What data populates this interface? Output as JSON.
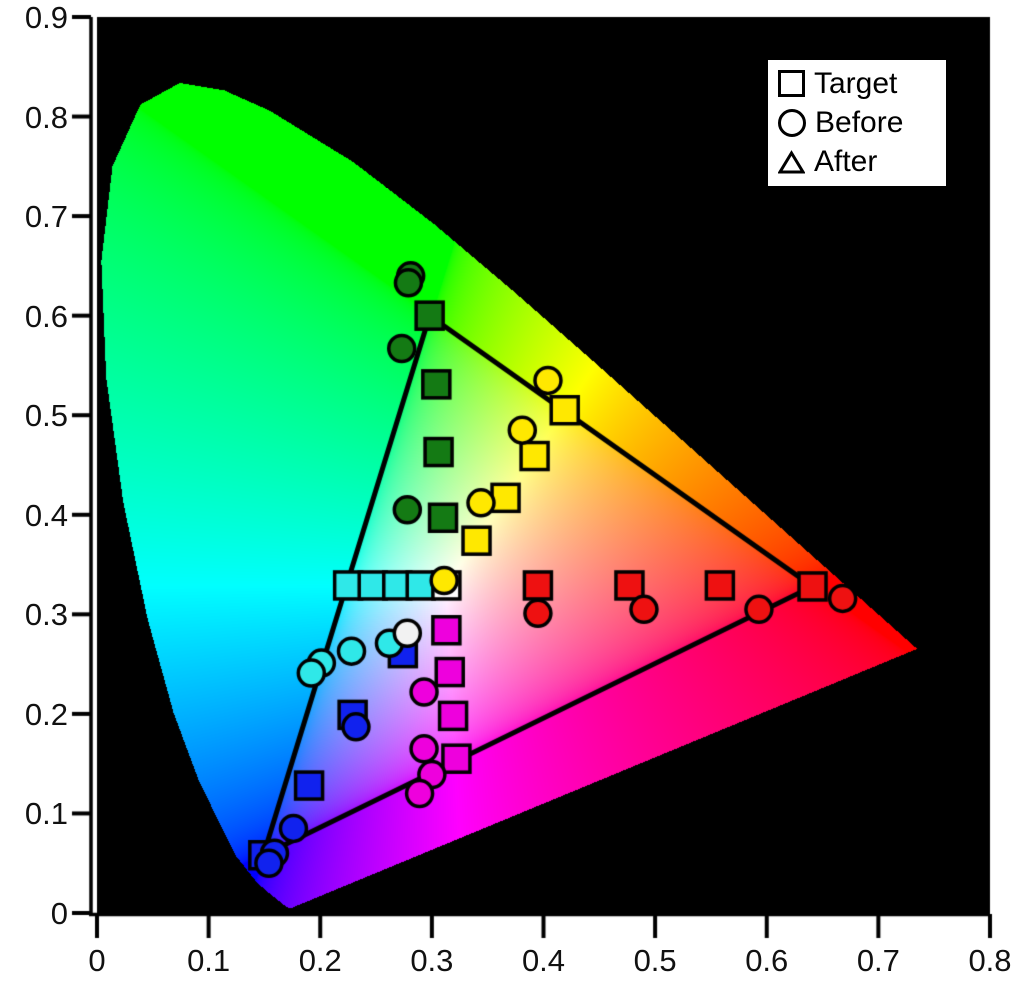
{
  "legend": {
    "items": [
      {
        "marker": "square",
        "label": "Target"
      },
      {
        "marker": "circle",
        "label": "Before"
      },
      {
        "marker": "triangle",
        "label": "After"
      }
    ]
  },
  "chart_data": {
    "type": "scatter",
    "description": "CIE 1931 xy chromaticity diagram on black background with display gamut triangle, target color patches (squares) and measured points before calibration (circles)",
    "xlim": [
      0,
      0.8
    ],
    "ylim": [
      0,
      0.9
    ],
    "x_ticks": [
      "0",
      "0.1",
      "0.2",
      "0.3",
      "0.4",
      "0.5",
      "0.6",
      "0.7",
      "0.8"
    ],
    "y_ticks": [
      "0",
      "0.1",
      "0.2",
      "0.3",
      "0.4",
      "0.5",
      "0.6",
      "0.7",
      "0.8",
      "0.9"
    ],
    "grid": false,
    "legend_position": "top-right",
    "background_color": "#000000",
    "gamut_triangle": {
      "color": "#000000",
      "line_width": 5,
      "vertices": [
        {
          "x": 0.298,
          "y": 0.6
        },
        {
          "x": 0.641,
          "y": 0.328
        },
        {
          "x": 0.149,
          "y": 0.058
        }
      ]
    },
    "series": [
      {
        "name": "Target",
        "marker": "square",
        "points": [
          {
            "x": 0.298,
            "y": 0.6,
            "color": "#147a14"
          },
          {
            "x": 0.304,
            "y": 0.531,
            "color": "#147a14"
          },
          {
            "x": 0.306,
            "y": 0.463,
            "color": "#147a14"
          },
          {
            "x": 0.31,
            "y": 0.397,
            "color": "#147a14"
          },
          {
            "x": 0.419,
            "y": 0.505,
            "color": "#ffe800"
          },
          {
            "x": 0.392,
            "y": 0.459,
            "color": "#ffe800"
          },
          {
            "x": 0.366,
            "y": 0.417,
            "color": "#ffe800"
          },
          {
            "x": 0.34,
            "y": 0.374,
            "color": "#ffe800"
          },
          {
            "x": 0.225,
            "y": 0.329,
            "color": "#2fe8e8"
          },
          {
            "x": 0.247,
            "y": 0.329,
            "color": "#2fe8e8"
          },
          {
            "x": 0.269,
            "y": 0.329,
            "color": "#2fe8e8"
          },
          {
            "x": 0.29,
            "y": 0.329,
            "color": "#2fe8e8"
          },
          {
            "x": 0.313,
            "y": 0.329,
            "color": "#ffffff"
          },
          {
            "x": 0.395,
            "y": 0.329,
            "color": "#ee1111"
          },
          {
            "x": 0.477,
            "y": 0.329,
            "color": "#ee1111"
          },
          {
            "x": 0.558,
            "y": 0.329,
            "color": "#ee1111"
          },
          {
            "x": 0.641,
            "y": 0.328,
            "color": "#ee1111"
          },
          {
            "x": 0.313,
            "y": 0.284,
            "color": "#ee00dd"
          },
          {
            "x": 0.316,
            "y": 0.242,
            "color": "#ee00dd"
          },
          {
            "x": 0.319,
            "y": 0.198,
            "color": "#ee00dd"
          },
          {
            "x": 0.322,
            "y": 0.155,
            "color": "#ee00dd"
          },
          {
            "x": 0.274,
            "y": 0.261,
            "color": "#1122ee"
          },
          {
            "x": 0.229,
            "y": 0.199,
            "color": "#1122ee"
          },
          {
            "x": 0.19,
            "y": 0.128,
            "color": "#1122ee"
          },
          {
            "x": 0.149,
            "y": 0.058,
            "color": "#1122ee"
          }
        ]
      },
      {
        "name": "Before",
        "marker": "circle",
        "points": [
          {
            "x": 0.281,
            "y": 0.64,
            "color": "#147a14"
          },
          {
            "x": 0.279,
            "y": 0.633,
            "color": "#147a14"
          },
          {
            "x": 0.273,
            "y": 0.567,
            "color": "#147a14"
          },
          {
            "x": 0.278,
            "y": 0.405,
            "color": "#147a14"
          },
          {
            "x": 0.404,
            "y": 0.535,
            "color": "#ffe800"
          },
          {
            "x": 0.381,
            "y": 0.485,
            "color": "#ffe800"
          },
          {
            "x": 0.344,
            "y": 0.412,
            "color": "#ffe800"
          },
          {
            "x": 0.311,
            "y": 0.334,
            "color": "#ffe800"
          },
          {
            "x": 0.262,
            "y": 0.271,
            "color": "#2fe8e8"
          },
          {
            "x": 0.228,
            "y": 0.263,
            "color": "#2fe8e8"
          },
          {
            "x": 0.201,
            "y": 0.251,
            "color": "#2fe8e8"
          },
          {
            "x": 0.192,
            "y": 0.241,
            "color": "#2fe8e8"
          },
          {
            "x": 0.278,
            "y": 0.281,
            "color": "#f2f2f2"
          },
          {
            "x": 0.395,
            "y": 0.301,
            "color": "#ee1111"
          },
          {
            "x": 0.49,
            "y": 0.305,
            "color": "#ee1111"
          },
          {
            "x": 0.593,
            "y": 0.305,
            "color": "#ee1111"
          },
          {
            "x": 0.668,
            "y": 0.316,
            "color": "#ee1111"
          },
          {
            "x": 0.293,
            "y": 0.222,
            "color": "#ee00dd"
          },
          {
            "x": 0.293,
            "y": 0.165,
            "color": "#ee00dd"
          },
          {
            "x": 0.3,
            "y": 0.139,
            "color": "#ee00dd"
          },
          {
            "x": 0.289,
            "y": 0.12,
            "color": "#ee00dd"
          },
          {
            "x": 0.232,
            "y": 0.187,
            "color": "#1122ee"
          },
          {
            "x": 0.176,
            "y": 0.085,
            "color": "#1122ee"
          },
          {
            "x": 0.159,
            "y": 0.06,
            "color": "#1122ee"
          },
          {
            "x": 0.154,
            "y": 0.05,
            "color": "#1122ee"
          }
        ]
      },
      {
        "name": "After",
        "marker": "triangle",
        "points": [],
        "note": "No separately visible After points; they coincide with the Target squares"
      }
    ],
    "spectral_locus": [
      [
        0.1741,
        0.005
      ],
      [
        0.1738,
        0.0049
      ],
      [
        0.1733,
        0.0048
      ],
      [
        0.1726,
        0.0048
      ],
      [
        0.1714,
        0.0051
      ],
      [
        0.1689,
        0.0069
      ],
      [
        0.1644,
        0.0109
      ],
      [
        0.1566,
        0.0177
      ],
      [
        0.144,
        0.0297
      ],
      [
        0.1241,
        0.0578
      ],
      [
        0.0913,
        0.1327
      ],
      [
        0.0687,
        0.2007
      ],
      [
        0.0454,
        0.295
      ],
      [
        0.0235,
        0.4127
      ],
      [
        0.0082,
        0.5384
      ],
      [
        0.0039,
        0.6548
      ],
      [
        0.0139,
        0.7502
      ],
      [
        0.0389,
        0.812
      ],
      [
        0.0743,
        0.8338
      ],
      [
        0.1142,
        0.8262
      ],
      [
        0.1547,
        0.8059
      ],
      [
        0.2296,
        0.7543
      ],
      [
        0.3016,
        0.6923
      ],
      [
        0.3731,
        0.6245
      ],
      [
        0.4441,
        0.5547
      ],
      [
        0.5125,
        0.4866
      ],
      [
        0.5752,
        0.4242
      ],
      [
        0.627,
        0.3725
      ],
      [
        0.6658,
        0.334
      ],
      [
        0.6915,
        0.3083
      ],
      [
        0.7079,
        0.292
      ],
      [
        0.719,
        0.2809
      ],
      [
        0.726,
        0.274
      ],
      [
        0.7334,
        0.2666
      ],
      [
        0.7347,
        0.2653
      ]
    ]
  }
}
